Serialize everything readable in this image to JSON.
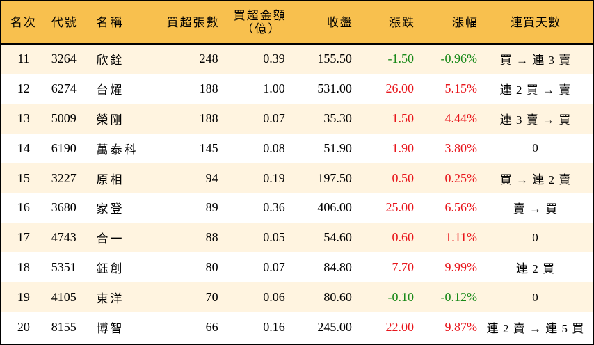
{
  "colors": {
    "header_bg": "#F8C04E",
    "row_stripe": "#FFF4E0",
    "row_plain": "#FFFFFF",
    "up": "#E8161C",
    "down": "#1A8A1A",
    "border": "#000000"
  },
  "table": {
    "headers": {
      "rank": "名次",
      "code": "代號",
      "name": "名稱",
      "net_buy_lots": "買超張數",
      "net_buy_amount_line1": "買超金額",
      "net_buy_amount_line2": "（億）",
      "close": "收盤",
      "change": "漲跌",
      "change_pct": "漲幅",
      "streak": "連買天數"
    },
    "rows": [
      {
        "rank": "11",
        "code": "3264",
        "name": "欣銓",
        "lots": "248",
        "amount": "0.39",
        "close": "155.50",
        "change": "-1.50",
        "pct": "-0.96%",
        "dir": "down",
        "streak": "買 → 連 3 賣"
      },
      {
        "rank": "12",
        "code": "6274",
        "name": "台燿",
        "lots": "188",
        "amount": "1.00",
        "close": "531.00",
        "change": "26.00",
        "pct": "5.15%",
        "dir": "up",
        "streak": "連 2 買 → 賣"
      },
      {
        "rank": "13",
        "code": "5009",
        "name": "榮剛",
        "lots": "188",
        "amount": "0.07",
        "close": "35.30",
        "change": "1.50",
        "pct": "4.44%",
        "dir": "up",
        "streak": "連 3 賣 → 買"
      },
      {
        "rank": "14",
        "code": "6190",
        "name": "萬泰科",
        "lots": "145",
        "amount": "0.08",
        "close": "51.90",
        "change": "1.90",
        "pct": "3.80%",
        "dir": "up",
        "streak": "0"
      },
      {
        "rank": "15",
        "code": "3227",
        "name": "原相",
        "lots": "94",
        "amount": "0.19",
        "close": "197.50",
        "change": "0.50",
        "pct": "0.25%",
        "dir": "up",
        "streak": "買 → 連 2 賣"
      },
      {
        "rank": "16",
        "code": "3680",
        "name": "家登",
        "lots": "89",
        "amount": "0.36",
        "close": "406.00",
        "change": "25.00",
        "pct": "6.56%",
        "dir": "up",
        "streak": "賣 → 買"
      },
      {
        "rank": "17",
        "code": "4743",
        "name": "合一",
        "lots": "88",
        "amount": "0.05",
        "close": "54.60",
        "change": "0.60",
        "pct": "1.11%",
        "dir": "up",
        "streak": "0"
      },
      {
        "rank": "18",
        "code": "5351",
        "name": "鈺創",
        "lots": "80",
        "amount": "0.07",
        "close": "84.80",
        "change": "7.70",
        "pct": "9.99%",
        "dir": "up",
        "streak": "連 2 買"
      },
      {
        "rank": "19",
        "code": "4105",
        "name": "東洋",
        "lots": "70",
        "amount": "0.06",
        "close": "80.60",
        "change": "-0.10",
        "pct": "-0.12%",
        "dir": "down",
        "streak": "0"
      },
      {
        "rank": "20",
        "code": "8155",
        "name": "博智",
        "lots": "66",
        "amount": "0.16",
        "close": "245.00",
        "change": "22.00",
        "pct": "9.87%",
        "dir": "up",
        "streak": "連 2 賣 → 連 5 買"
      }
    ]
  }
}
